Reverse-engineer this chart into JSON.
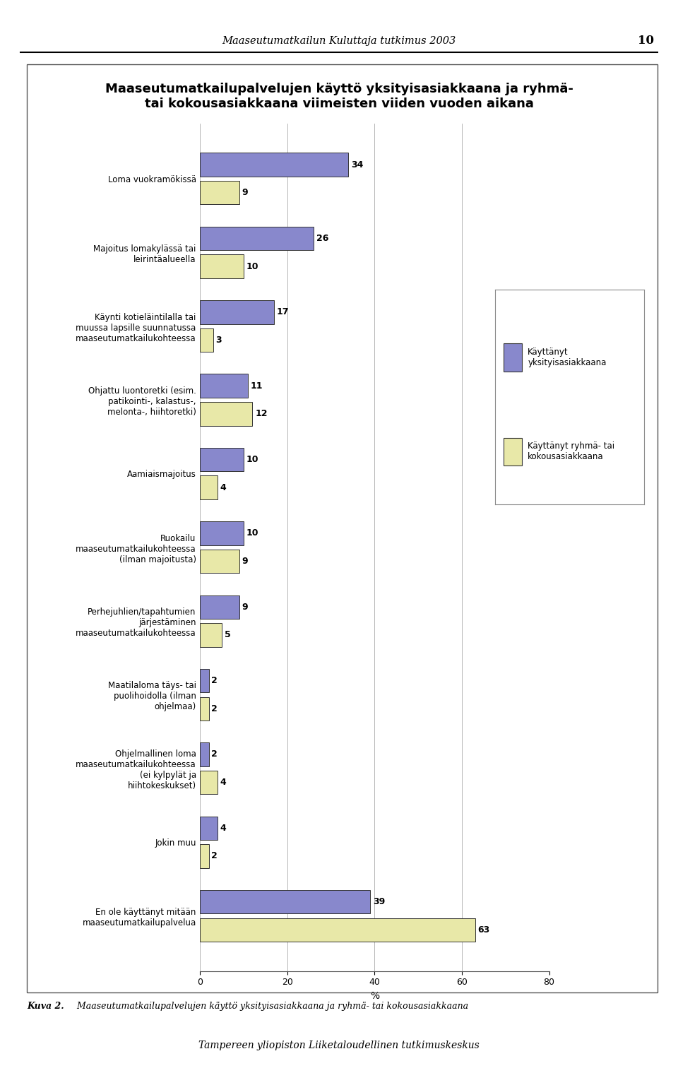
{
  "title_line1": "Maaseutumatkailupalvelujen käyttö yksityisasiakkaana ja ryhmä-",
  "title_line2": "tai kokousasiakkaana viimeisten viiden vuoden aikana",
  "header": "Maaseutumatkailun Kuluttaja tutkimus 2003",
  "page_number": "10",
  "categories": [
    "Loma vuokramökissä",
    "Majoitus lomakylässä tai\nleirintäalueella",
    "Käynti kotieläintilalla tai\nmuussa lapsille suunnatussa\nmaaseutumatkailukohteessa",
    "Ohjattu luontoretki (esim.\npatikointi-, kalastus-,\nmelonta-, hiihtoretki)",
    "Aamiaismajoitus",
    "Ruokailu\nmaaseutumatkailukohteessa\n(ilman majoitusta)",
    "Perhejuhlien/tapahtumien\njärjestäminen\nmaaseutumatkailukohteessa",
    "Maatilaloma täys- tai\npuolihoidolla (ilman\nohjelmaa)",
    "Ohjelmallinen loma\nmaaseutumatkailukohteessa\n(ei kylpylät ja\nhiihtokeskukset)",
    "Jokin muu",
    "En ole käyttänyt mitään\nmaaseutumatkailupalvelua"
  ],
  "yksityis_values": [
    34,
    26,
    17,
    11,
    10,
    10,
    9,
    2,
    2,
    4,
    39
  ],
  "ryhma_values": [
    9,
    10,
    3,
    12,
    4,
    9,
    5,
    2,
    4,
    2,
    63
  ],
  "yksityis_color": "#8888cc",
  "ryhma_color": "#e8e8a8",
  "bar_edge_color": "#333333",
  "xlabel": "%",
  "xlim": [
    0,
    80
  ],
  "xticks": [
    0,
    20,
    40,
    60,
    80
  ],
  "legend_yksityis": "Käyttänyt\nyksityisasiakkaana",
  "legend_ryhma": "Käyttänyt ryhmä- tai\nkokousasiakkaana",
  "caption_bold": "Kuva 2.",
  "caption_italic": "  Maaseutumatkailupalvelujen käyttö yksityisasiakkaana ja ryhmä- tai kokousasiakkaana",
  "footer": "Tampereen yliopiston Liiketaloudellinen tutkimuskeskus",
  "background_color": "#ffffff"
}
